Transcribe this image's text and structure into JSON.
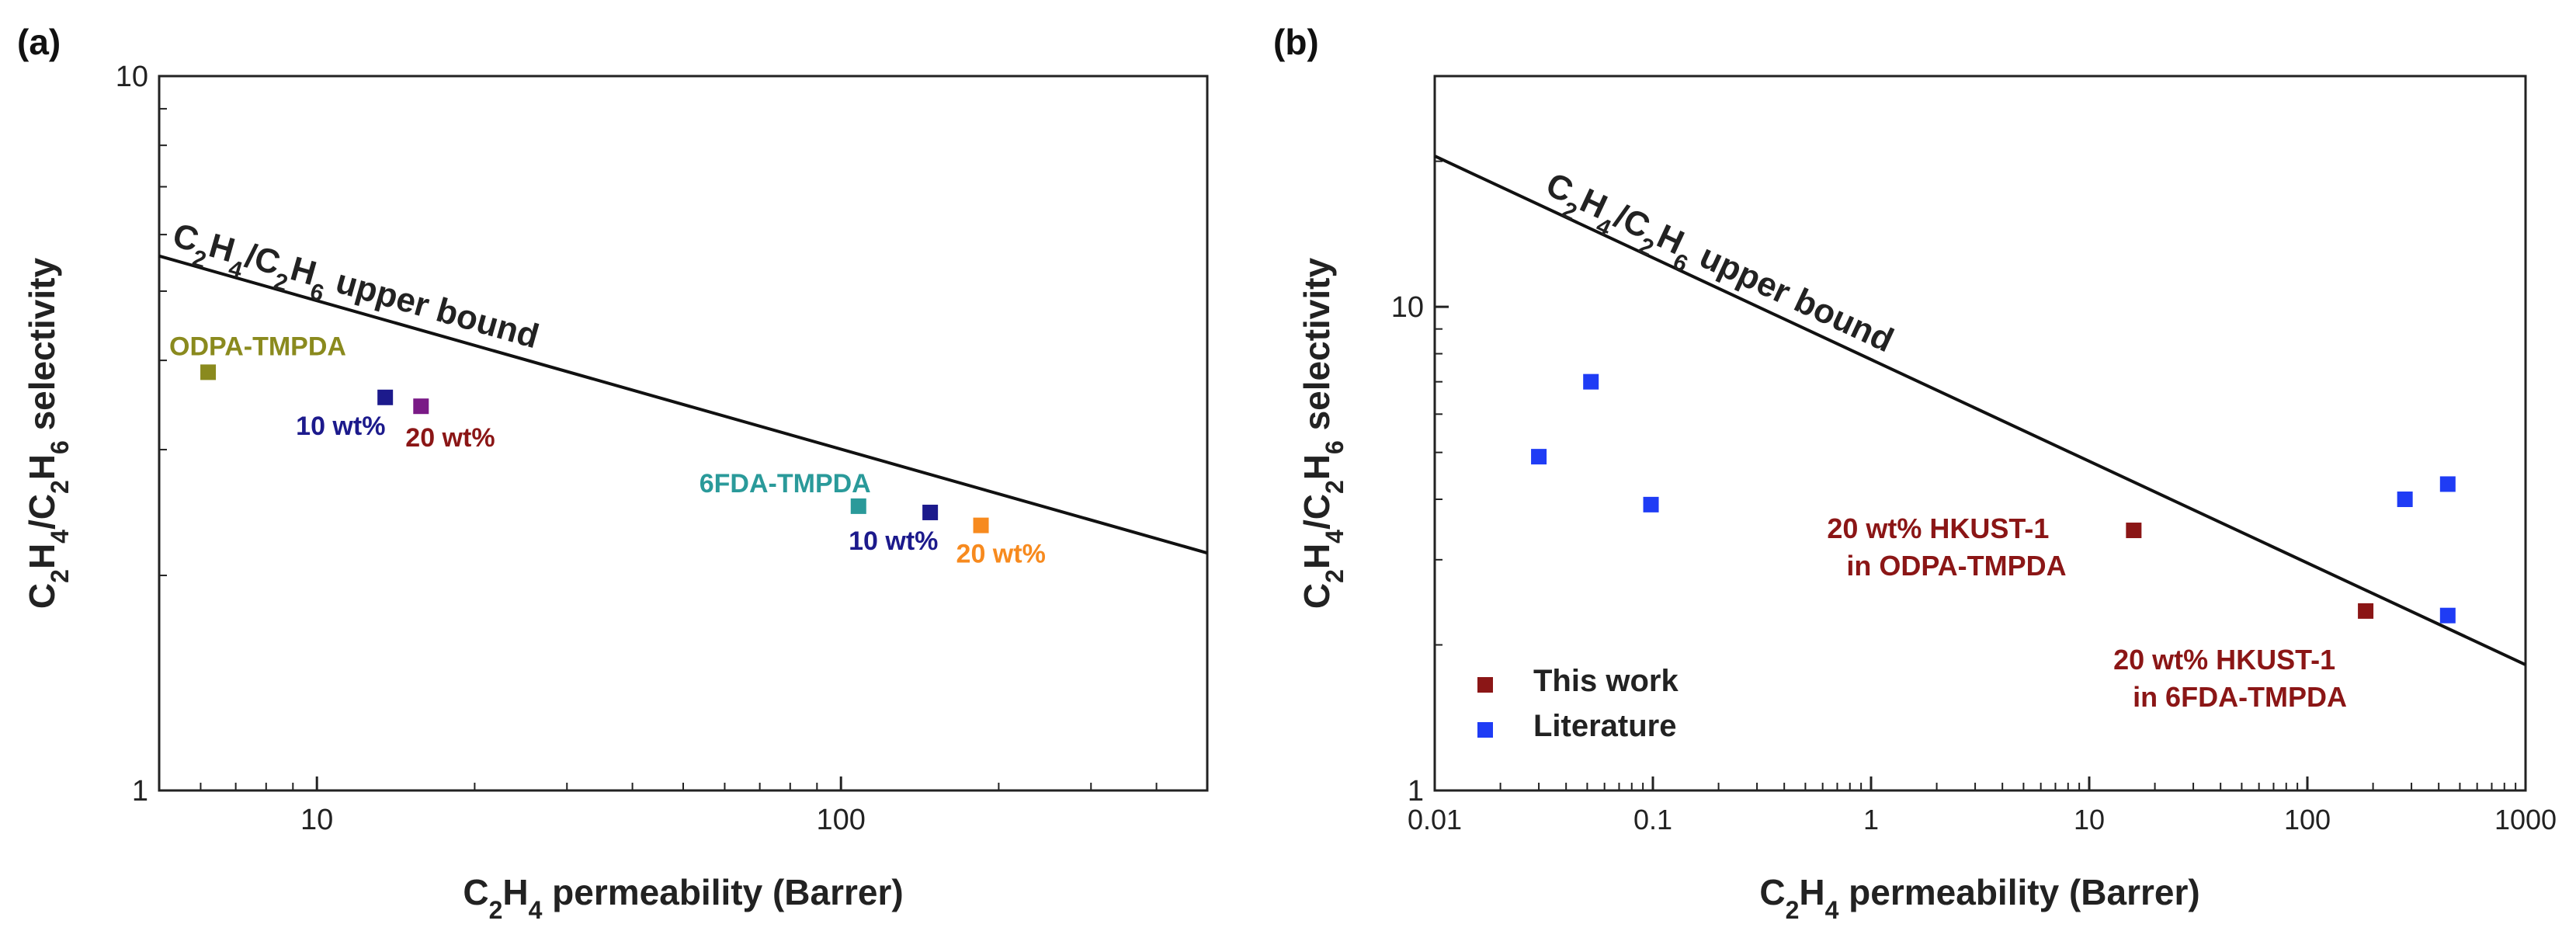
{
  "colors": {
    "axis": "#222222",
    "bound": "#111111",
    "olive": "#8a8a1e",
    "navy": "#1c1a8c",
    "purple": "#7a1a86",
    "darkred": "#8b1616",
    "teal": "#2a9a9a",
    "orange": "#f78a1e",
    "this_work": "#8b1616",
    "literature": "#1f3cf5"
  },
  "chart_data": [
    {
      "panel": "(a)",
      "type": "scatter",
      "x_scale": "log",
      "y_scale": "log",
      "xlim": [
        5,
        500
      ],
      "ylim": [
        1,
        10
      ],
      "x_ticks": [
        "10",
        "100"
      ],
      "y_ticks": [
        "1",
        "10"
      ],
      "xlabel": {
        "pre": "C",
        "sub": "2",
        "mid": "H",
        "sub2": "4",
        "post": " permeability (Barrer)"
      },
      "ylabel": {
        "parts": [
          "C",
          "2",
          "H",
          "4",
          "/C",
          "2",
          "H",
          "6",
          " selectivity"
        ]
      },
      "upper_bound": {
        "points": [
          [
            5,
            5.6
          ],
          [
            500,
            2.15
          ]
        ],
        "label_parts": [
          "C",
          "2",
          "H",
          "4",
          "/C",
          "2",
          "H",
          "6",
          " upper bound"
        ]
      },
      "points": [
        {
          "x": 6.2,
          "y": 3.85,
          "color": "olive"
        },
        {
          "x": 13.5,
          "y": 3.55,
          "color": "navy"
        },
        {
          "x": 15.8,
          "y": 3.45,
          "color": "purple"
        },
        {
          "x": 108,
          "y": 2.5,
          "color": "teal"
        },
        {
          "x": 148,
          "y": 2.45,
          "color": "navy"
        },
        {
          "x": 185,
          "y": 2.35,
          "color": "orange"
        }
      ],
      "annotations": [
        {
          "text": "ODPA-TMPDA",
          "x": 6.2,
          "y": 3.85,
          "color": "olive",
          "dx": -50,
          "dy": -22
        },
        {
          "text": "10 wt%",
          "x": 13.5,
          "y": 3.55,
          "color": "navy",
          "dx": -115,
          "dy": 48
        },
        {
          "text": "20 wt%",
          "x": 15.8,
          "y": 3.45,
          "color": "darkred",
          "dx": -20,
          "dy": 52
        },
        {
          "text": "6FDA-TMPDA",
          "x": 108,
          "y": 2.5,
          "color": "teal",
          "dx": -205,
          "dy": -18
        },
        {
          "text": "10 wt%",
          "x": 148,
          "y": 2.45,
          "color": "navy",
          "dx": -105,
          "dy": 48
        },
        {
          "text": "20 wt%",
          "x": 185,
          "y": 2.35,
          "color": "orange",
          "dx": -32,
          "dy": 48
        }
      ]
    },
    {
      "panel": "(b)",
      "type": "scatter",
      "x_scale": "log",
      "y_scale": "log",
      "xlim": [
        0.01,
        1000
      ],
      "ylim": [
        1,
        30
      ],
      "x_ticks": [
        "0.01",
        "0.1",
        "1",
        "10",
        "100",
        "1000"
      ],
      "y_ticks": [
        "1",
        "10"
      ],
      "xlabel": {
        "pre": "C",
        "sub": "2",
        "mid": "H",
        "sub2": "4",
        "post": " permeability (Barrer)"
      },
      "ylabel": {
        "parts": [
          "C",
          "2",
          "H",
          "4",
          "/C",
          "2",
          "H",
          "6",
          " selectivity"
        ]
      },
      "upper_bound": {
        "points": [
          [
            0.01,
            20.5
          ],
          [
            1000,
            1.82
          ]
        ],
        "label_parts": [
          "C",
          "2",
          "H",
          "4",
          "/C",
          "2",
          "H",
          "6",
          " upper bound"
        ]
      },
      "series": [
        {
          "name": "This work",
          "color": "this_work",
          "points": [
            {
              "x": 16,
              "y": 3.45
            },
            {
              "x": 185,
              "y": 2.35
            }
          ]
        },
        {
          "name": "Literature",
          "color": "literature",
          "points": [
            {
              "x": 0.03,
              "y": 4.9
            },
            {
              "x": 0.052,
              "y": 7.0
            },
            {
              "x": 0.098,
              "y": 3.9
            },
            {
              "x": 280,
              "y": 4.0
            },
            {
              "x": 440,
              "y": 4.3
            },
            {
              "x": 440,
              "y": 2.3
            }
          ]
        }
      ],
      "annotations": [
        {
          "lines": [
            "20 wt% HKUST-1",
            "in ODPA-TMPDA"
          ],
          "x": 16,
          "y": 3.45,
          "color": "darkred",
          "dx": -395,
          "dy": 10
        },
        {
          "lines": [
            "20 wt% HKUST-1",
            "in 6FDA-TMPDA"
          ],
          "x": 185,
          "y": 2.35,
          "color": "darkred",
          "dx": -325,
          "dy": 75
        }
      ],
      "legend_position": "lower-left"
    }
  ]
}
